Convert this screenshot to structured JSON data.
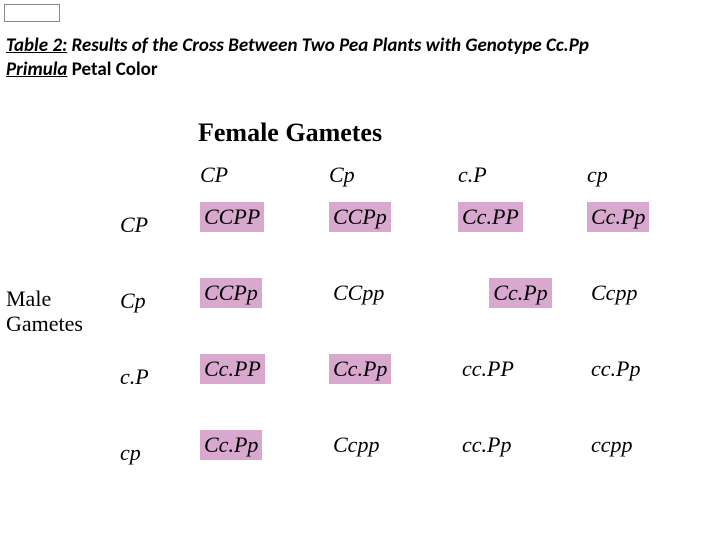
{
  "caption": {
    "table_label": "Table 2:",
    "title_rest": " Results of the Cross Between Two Pea Plants with Genotype Cc.Pp",
    "primula": "Primula",
    "petal": " Petal Color"
  },
  "headers": {
    "female": "Female Gametes",
    "male_line1": "Male",
    "male_line2": "Gametes"
  },
  "col_labels": [
    "CP",
    "Cp",
    "c.P",
    "cp"
  ],
  "row_labels": [
    "CP",
    "Cp",
    "c.P",
    "cp"
  ],
  "colors": {
    "highlight_pink": "#d9a8cf",
    "highlight_white": "#ffffff"
  },
  "cells": [
    [
      {
        "text": "CCPP",
        "hl": "pink"
      },
      {
        "text": "CCPp",
        "hl": "pink"
      },
      {
        "text": "Cc.PP",
        "hl": "pink"
      },
      {
        "text": "Cc.Pp",
        "hl": "pink"
      }
    ],
    [
      {
        "text": "CCPp",
        "hl": "pink"
      },
      {
        "text": "CCpp",
        "hl": "white"
      },
      {
        "text": "Cc.Pp",
        "hl": "pink"
      },
      {
        "text": "Ccpp",
        "hl": "white"
      }
    ],
    [
      {
        "text": "Cc.PP",
        "hl": "pink"
      },
      {
        "text": "Cc.Pp",
        "hl": "pink"
      },
      {
        "text": "cc.PP",
        "hl": "white"
      },
      {
        "text": "cc.Pp",
        "hl": "white"
      }
    ],
    [
      {
        "text": "Cc.Pp",
        "hl": "pink"
      },
      {
        "text": "Ccpp",
        "hl": "white"
      },
      {
        "text": "cc.Pp",
        "hl": "white"
      },
      {
        "text": "ccpp",
        "hl": "white"
      }
    ]
  ]
}
